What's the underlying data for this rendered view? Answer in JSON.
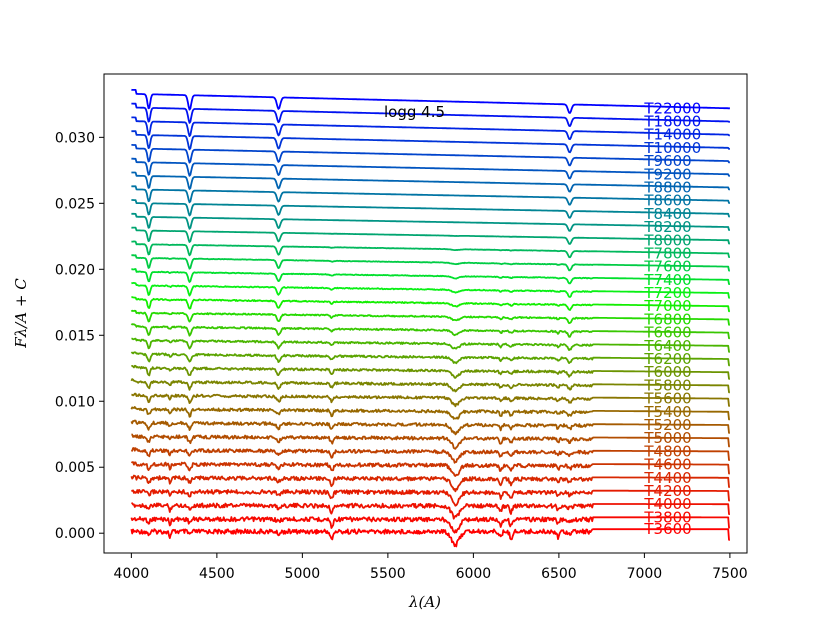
{
  "chart_data": {
    "type": "line",
    "xlabel": "λ(A)",
    "ylabel": "Fλ/A + C",
    "annotation": "logg 4.5",
    "xlim": [
      3840,
      7600
    ],
    "ylim": [
      -0.0015,
      0.0348
    ],
    "x_ticks": [
      4000,
      4500,
      5000,
      5500,
      6000,
      6500,
      7000,
      7500
    ],
    "y_ticks": [
      0.0,
      0.005,
      0.01,
      0.015,
      0.02,
      0.025,
      0.03
    ],
    "x_tick_labels": [
      "4000",
      "4500",
      "5000",
      "5500",
      "6000",
      "6500",
      "7000",
      "7500"
    ],
    "y_tick_labels": [
      "0.000",
      "0.005",
      "0.010",
      "0.015",
      "0.020",
      "0.025",
      "0.030"
    ],
    "grid": false,
    "series": [
      {
        "name": "T3600",
        "color": "#ff0000",
        "level": 0.0003
      },
      {
        "name": "T3800",
        "color": "#f70800",
        "level": 0.0012
      },
      {
        "name": "T4000",
        "color": "#ee1100",
        "level": 0.0022
      },
      {
        "name": "T4200",
        "color": "#e41b00",
        "level": 0.0032
      },
      {
        "name": "T4400",
        "color": "#d82700",
        "level": 0.0042
      },
      {
        "name": "T4600",
        "color": "#cc3300",
        "level": 0.0052
      },
      {
        "name": "T4800",
        "color": "#bf4000",
        "level": 0.0062
      },
      {
        "name": "T5000",
        "color": "#b24d00",
        "level": 0.0072
      },
      {
        "name": "T5200",
        "color": "#a55a00",
        "level": 0.0082
      },
      {
        "name": "T5400",
        "color": "#976800",
        "level": 0.0092
      },
      {
        "name": "T5600",
        "color": "#897600",
        "level": 0.0102
      },
      {
        "name": "T5800",
        "color": "#7a8500",
        "level": 0.0112
      },
      {
        "name": "T6000",
        "color": "#6b9400",
        "level": 0.0122
      },
      {
        "name": "T6200",
        "color": "#5ba400",
        "level": 0.0132
      },
      {
        "name": "T6400",
        "color": "#4ab500",
        "level": 0.0142
      },
      {
        "name": "T6600",
        "color": "#38c700",
        "level": 0.0152
      },
      {
        "name": "T6800",
        "color": "#25da00",
        "level": 0.0162
      },
      {
        "name": "T7000",
        "color": "#12ee00",
        "level": 0.0172
      },
      {
        "name": "T7200",
        "color": "#08f014",
        "level": 0.0182
      },
      {
        "name": "T7400",
        "color": "#00e02c",
        "level": 0.0192
      },
      {
        "name": "T7600",
        "color": "#00cc44",
        "level": 0.0202
      },
      {
        "name": "T7800",
        "color": "#00b85c",
        "level": 0.0212
      },
      {
        "name": "T8000",
        "color": "#00a570",
        "level": 0.0222
      },
      {
        "name": "T8200",
        "color": "#009484",
        "level": 0.0232
      },
      {
        "name": "T8400",
        "color": "#008494",
        "level": 0.0242
      },
      {
        "name": "T8600",
        "color": "#0074a4",
        "level": 0.0252
      },
      {
        "name": "T8800",
        "color": "#0064b2",
        "level": 0.0262
      },
      {
        "name": "T9200",
        "color": "#0054c0",
        "level": 0.0272
      },
      {
        "name": "T9600",
        "color": "#0044cc",
        "level": 0.0282
      },
      {
        "name": "T10000",
        "color": "#0034d8",
        "level": 0.0292
      },
      {
        "name": "T14000",
        "color": "#0024e4",
        "level": 0.0302
      },
      {
        "name": "T18000",
        "color": "#0012f0",
        "level": 0.0312
      },
      {
        "name": "T22000",
        "color": "#0000ff",
        "level": 0.0322
      }
    ]
  }
}
